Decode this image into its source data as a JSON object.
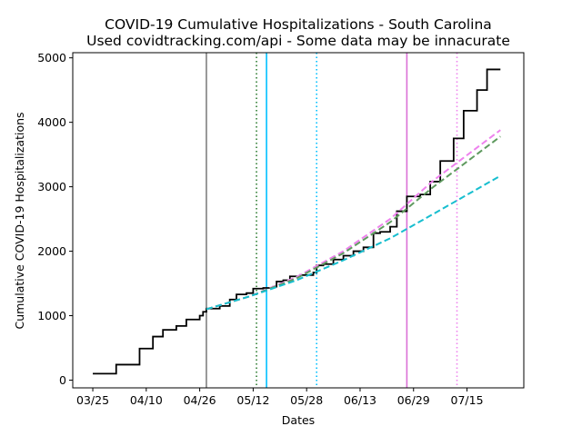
{
  "chart_data": {
    "type": "line",
    "title_line1": "COVID-19 Cumulative Hospitalizations - South Carolina",
    "title_line2": "Used covidtracking.com/api - Some data may be innacurate",
    "xlabel": "Dates",
    "ylabel": "Cumulative COVID-19 Hospitalizations",
    "x_tick_labels": [
      "03/25",
      "04/10",
      "04/26",
      "05/12",
      "05/28",
      "06/13",
      "06/29",
      "07/15"
    ],
    "x_ticks_dates": [
      "2020-03-25",
      "2020-04-10",
      "2020-04-26",
      "2020-05-12",
      "2020-05-28",
      "2020-06-13",
      "2020-06-29",
      "2020-07-15"
    ],
    "xlim": [
      "2020-03-19",
      "2020-08-01"
    ],
    "y_tick_labels": [
      "0",
      "1000",
      "2000",
      "3000",
      "4000",
      "5000"
    ],
    "y_ticks": [
      0,
      1000,
      2000,
      3000,
      4000,
      5000
    ],
    "ylim": [
      -120,
      5080
    ],
    "grid": false,
    "legend": "none",
    "series": [
      {
        "style": "step",
        "color": "#000000",
        "points": [
          [
            "2020-03-25",
            100
          ],
          [
            "2020-04-01",
            240
          ],
          [
            "2020-04-08",
            490
          ],
          [
            "2020-04-12",
            675
          ],
          [
            "2020-04-15",
            780
          ],
          [
            "2020-04-19",
            840
          ],
          [
            "2020-04-22",
            940
          ],
          [
            "2020-04-26",
            1000
          ],
          [
            "2020-04-27",
            1060
          ],
          [
            "2020-04-28",
            1110
          ],
          [
            "2020-05-02",
            1150
          ],
          [
            "2020-05-05",
            1250
          ],
          [
            "2020-05-07",
            1330
          ],
          [
            "2020-05-10",
            1350
          ],
          [
            "2020-05-12",
            1420
          ],
          [
            "2020-05-15",
            1430
          ],
          [
            "2020-05-18",
            1450
          ],
          [
            "2020-05-19",
            1530
          ],
          [
            "2020-05-21",
            1550
          ],
          [
            "2020-05-23",
            1610
          ],
          [
            "2020-05-26",
            1630
          ],
          [
            "2020-05-30",
            1670
          ],
          [
            "2020-05-31",
            1780
          ],
          [
            "2020-06-02",
            1800
          ],
          [
            "2020-06-05",
            1870
          ],
          [
            "2020-06-08",
            1930
          ],
          [
            "2020-06-11",
            2000
          ],
          [
            "2020-06-14",
            2060
          ],
          [
            "2020-06-17",
            2280
          ],
          [
            "2020-06-19",
            2300
          ],
          [
            "2020-06-22",
            2380
          ],
          [
            "2020-06-24",
            2620
          ],
          [
            "2020-06-27",
            2850
          ],
          [
            "2020-07-01",
            2880
          ],
          [
            "2020-07-04",
            3080
          ],
          [
            "2020-07-07",
            3400
          ],
          [
            "2020-07-11",
            3750
          ],
          [
            "2020-07-14",
            4180
          ],
          [
            "2020-07-18",
            4500
          ],
          [
            "2020-07-21",
            4820
          ],
          [
            "2020-07-25",
            4820
          ]
        ]
      },
      {
        "style": "dashed",
        "color": "#ee82ee",
        "points": [
          [
            "2020-04-28",
            1100
          ],
          [
            "2020-05-11",
            1300
          ],
          [
            "2020-05-25",
            1600
          ],
          [
            "2020-06-08",
            2000
          ],
          [
            "2020-06-22",
            2500
          ],
          [
            "2020-07-05",
            3100
          ],
          [
            "2020-07-25",
            3880
          ]
        ]
      },
      {
        "style": "dashed",
        "color": "#5f9a5f",
        "points": [
          [
            "2020-04-28",
            1100
          ],
          [
            "2020-05-11",
            1300
          ],
          [
            "2020-05-25",
            1580
          ],
          [
            "2020-06-08",
            1970
          ],
          [
            "2020-06-22",
            2450
          ],
          [
            "2020-07-05",
            3000
          ],
          [
            "2020-07-25",
            3780
          ]
        ]
      },
      {
        "style": "dashed",
        "color": "#17becf",
        "points": [
          [
            "2020-04-28",
            1100
          ],
          [
            "2020-05-11",
            1300
          ],
          [
            "2020-05-25",
            1550
          ],
          [
            "2020-06-08",
            1860
          ],
          [
            "2020-06-22",
            2200
          ],
          [
            "2020-07-05",
            2580
          ],
          [
            "2020-07-25",
            3170
          ]
        ]
      }
    ],
    "vertical_lines": [
      {
        "date": "2020-04-28",
        "color": "#808080",
        "style": "solid"
      },
      {
        "date": "2020-05-13",
        "color": "#2e7d32",
        "style": "dotted"
      },
      {
        "date": "2020-05-16",
        "color": "#00bfff",
        "style": "solid"
      },
      {
        "date": "2020-05-31",
        "color": "#00bfff",
        "style": "dotted"
      },
      {
        "date": "2020-06-27",
        "color": "#da70d6",
        "style": "solid"
      },
      {
        "date": "2020-07-12",
        "color": "#ee82ee",
        "style": "dotted"
      }
    ]
  }
}
